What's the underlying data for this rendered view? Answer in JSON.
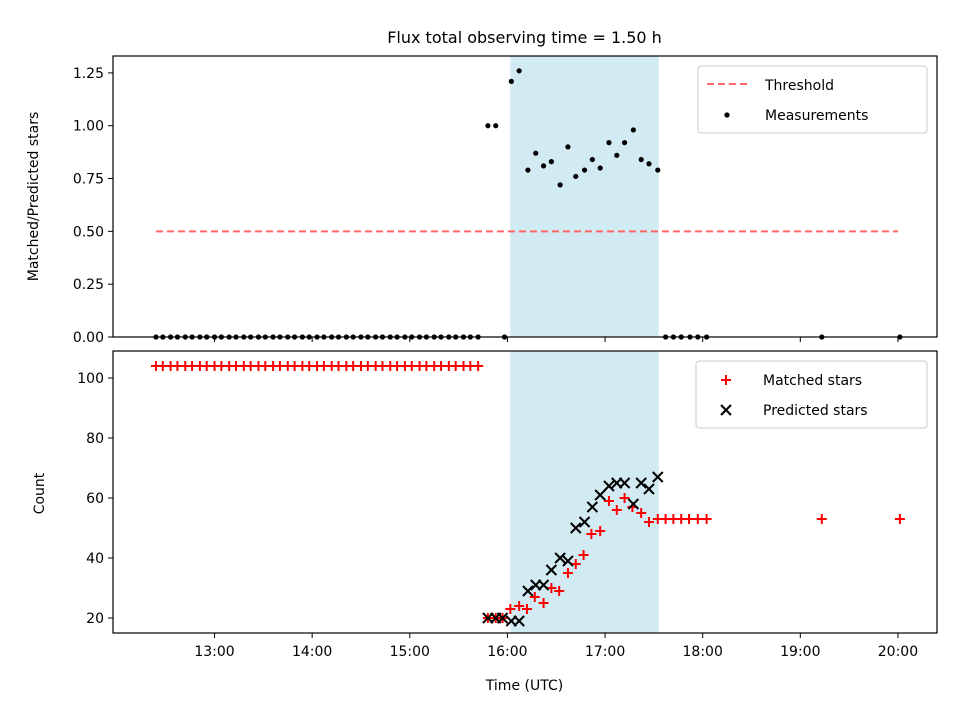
{
  "figure": {
    "title": "Flux total observing time = 1.50 h"
  },
  "chart_data": [
    {
      "type": "scatter",
      "panel": "top",
      "ylabel": "Matched/Predicted stars",
      "xlabel": "",
      "ylim": [
        0,
        1.33
      ],
      "yticks": [
        0.0,
        0.25,
        0.5,
        0.75,
        1.0,
        1.25
      ],
      "ytick_labels": [
        "0.00",
        "0.25",
        "0.50",
        "0.75",
        "1.00",
        "1.25"
      ],
      "legend": [
        "Threshold",
        "Measurements"
      ],
      "legend_position": "top-right",
      "shaded_interval": {
        "start": 16.03,
        "end": 17.55,
        "color": "#add8e6"
      },
      "threshold": {
        "name": "Threshold",
        "value": 0.5,
        "x": [
          12.4,
          20.0
        ],
        "color": "#ff6666"
      },
      "measurements": {
        "name": "Measurements",
        "x": [
          12.4,
          12.47,
          12.55,
          12.62,
          12.7,
          12.77,
          12.85,
          12.92,
          13.0,
          13.07,
          13.15,
          13.22,
          13.3,
          13.37,
          13.45,
          13.52,
          13.6,
          13.67,
          13.75,
          13.82,
          13.9,
          13.97,
          14.05,
          14.12,
          14.2,
          14.27,
          14.35,
          14.42,
          14.5,
          14.57,
          14.65,
          14.72,
          14.8,
          14.87,
          14.95,
          15.02,
          15.1,
          15.17,
          15.25,
          15.32,
          15.4,
          15.47,
          15.55,
          15.62,
          15.7,
          15.8,
          15.88,
          15.97,
          16.04,
          16.12,
          16.21,
          16.29,
          16.37,
          16.45,
          16.54,
          16.62,
          16.7,
          16.79,
          16.87,
          16.95,
          17.04,
          17.12,
          17.2,
          17.29,
          17.37,
          17.45,
          17.54,
          17.62,
          17.7,
          17.78,
          17.87,
          17.95,
          18.04,
          19.22,
          20.02
        ],
        "y": [
          0,
          0,
          0,
          0,
          0,
          0,
          0,
          0,
          0,
          0,
          0,
          0,
          0,
          0,
          0,
          0,
          0,
          0,
          0,
          0,
          0,
          0,
          0,
          0,
          0,
          0,
          0,
          0,
          0,
          0,
          0,
          0,
          0,
          0,
          0,
          0,
          0,
          0,
          0,
          0,
          0,
          0,
          0,
          0,
          0,
          1.0,
          1.0,
          0,
          1.21,
          1.26,
          0.79,
          0.87,
          0.81,
          0.83,
          0.72,
          0.9,
          0.76,
          0.79,
          0.84,
          0.8,
          0.92,
          0.86,
          0.92,
          0.98,
          0.84,
          0.82,
          0.79,
          0,
          0,
          0,
          0,
          0,
          0,
          0,
          0
        ]
      }
    },
    {
      "type": "scatter",
      "panel": "bottom",
      "ylabel": "Count",
      "xlabel": "Time (UTC)",
      "xlim": [
        11.96,
        20.4
      ],
      "ylim": [
        15,
        109
      ],
      "yticks": [
        20,
        40,
        60,
        80,
        100
      ],
      "ytick_labels": [
        "20",
        "40",
        "60",
        "80",
        "100"
      ],
      "xticks": [
        13,
        14,
        15,
        16,
        17,
        18,
        19,
        20
      ],
      "xtick_labels": [
        "13:00",
        "14:00",
        "15:00",
        "16:00",
        "17:00",
        "18:00",
        "19:00",
        "20:00"
      ],
      "legend": [
        "Matched stars",
        "Predicted stars"
      ],
      "legend_position": "top-right",
      "shaded_interval": {
        "start": 16.03,
        "end": 17.55,
        "color": "#add8e6"
      },
      "series": [
        {
          "name": "Matched stars",
          "marker": "+",
          "color": "#ff0000",
          "x": [
            12.4,
            12.47,
            12.55,
            12.62,
            12.7,
            12.77,
            12.85,
            12.92,
            13.0,
            13.07,
            13.15,
            13.22,
            13.3,
            13.37,
            13.45,
            13.52,
            13.6,
            13.67,
            13.75,
            13.82,
            13.9,
            13.97,
            14.05,
            14.12,
            14.2,
            14.27,
            14.35,
            14.42,
            14.5,
            14.57,
            14.65,
            14.72,
            14.8,
            14.87,
            14.95,
            15.02,
            15.1,
            15.17,
            15.25,
            15.32,
            15.4,
            15.47,
            15.55,
            15.62,
            15.7,
            15.8,
            15.88,
            15.95,
            16.03,
            16.12,
            16.2,
            16.28,
            16.37,
            16.45,
            16.53,
            16.62,
            16.7,
            16.78,
            16.86,
            16.95,
            17.04,
            17.12,
            17.2,
            17.28,
            17.37,
            17.45,
            17.54,
            17.62,
            17.7,
            17.78,
            17.86,
            17.95,
            18.04,
            19.22,
            20.02
          ],
          "y": [
            104,
            104,
            104,
            104,
            104,
            104,
            104,
            104,
            104,
            104,
            104,
            104,
            104,
            104,
            104,
            104,
            104,
            104,
            104,
            104,
            104,
            104,
            104,
            104,
            104,
            104,
            104,
            104,
            104,
            104,
            104,
            104,
            104,
            104,
            104,
            104,
            104,
            104,
            104,
            104,
            104,
            104,
            104,
            104,
            104,
            20,
            20,
            20,
            23,
            24,
            23,
            27,
            25,
            30,
            29,
            35,
            38,
            41,
            48,
            49,
            59,
            56,
            60,
            57,
            55,
            52,
            53,
            53,
            53,
            53,
            53,
            53,
            53,
            53,
            53
          ]
        },
        {
          "name": "Predicted stars",
          "marker": "x",
          "color": "#000000",
          "x": [
            15.8,
            15.88,
            15.95,
            16.04,
            16.12,
            16.21,
            16.29,
            16.37,
            16.45,
            16.54,
            16.62,
            16.7,
            16.79,
            16.87,
            16.95,
            17.04,
            17.12,
            17.2,
            17.29,
            17.37,
            17.45,
            17.54
          ],
          "y": [
            20,
            20,
            20,
            19,
            19,
            29,
            31,
            31,
            36,
            40,
            39,
            50,
            52,
            57,
            61,
            64,
            65,
            65,
            58,
            65,
            63,
            67
          ]
        }
      ]
    }
  ]
}
